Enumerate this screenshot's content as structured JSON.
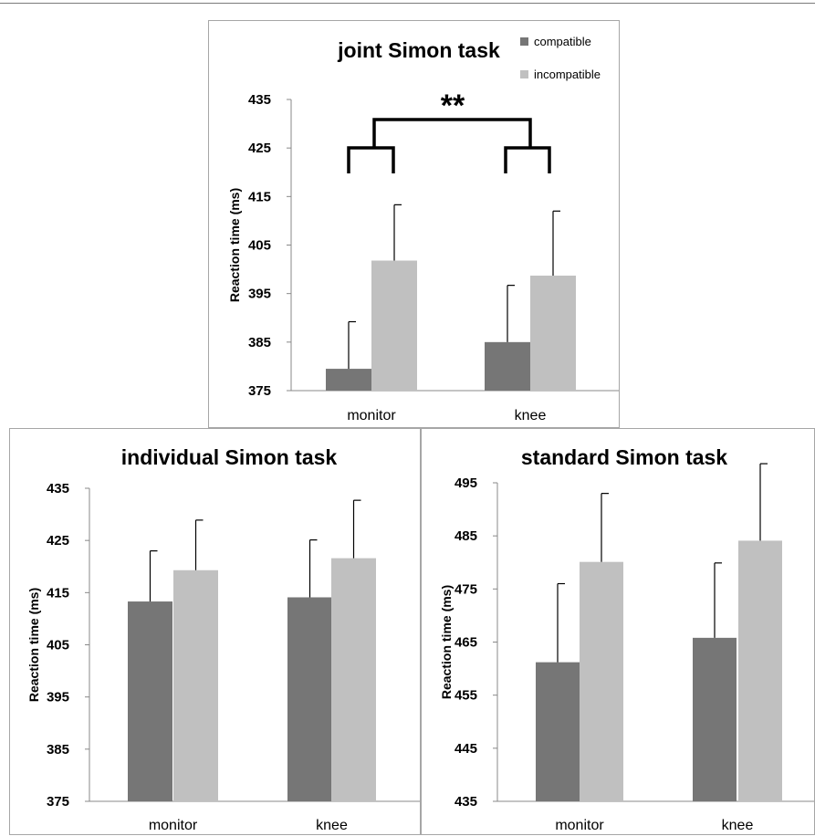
{
  "colors": {
    "compatible": "#767676",
    "incompatible": "#c0c0c0"
  },
  "chart_data": [
    {
      "type": "bar",
      "title": "joint Simon task",
      "categories": [
        "monitor",
        "knee"
      ],
      "ylabel": "Reaction time (ms)",
      "ylim": [
        375,
        435
      ],
      "yticks": [
        375,
        385,
        395,
        405,
        415,
        425,
        435
      ],
      "series": [
        {
          "name": "compatible",
          "values": [
            379.5,
            385
          ],
          "errors": [
            9.7,
            11.7
          ]
        },
        {
          "name": "incompatible",
          "values": [
            401.8,
            398.7
          ],
          "errors": [
            11.5,
            13.3
          ]
        }
      ],
      "legend": "top-right",
      "significance": "**"
    },
    {
      "type": "bar",
      "title": "individual Simon task",
      "categories": [
        "monitor",
        "knee"
      ],
      "ylabel": "Reaction time (ms)",
      "ylim": [
        375,
        435
      ],
      "yticks": [
        375,
        385,
        395,
        405,
        415,
        425,
        435
      ],
      "series": [
        {
          "values": [
            413.3,
            414.1
          ],
          "errors": [
            9.7,
            11
          ]
        },
        {
          "values": [
            419.3,
            421.6
          ],
          "errors": [
            9.6,
            11.1
          ]
        }
      ]
    },
    {
      "type": "bar",
      "title": "standard Simon task",
      "categories": [
        "monitor",
        "knee"
      ],
      "ylabel": "Reaction time (ms)",
      "ylim": [
        435,
        500
      ],
      "yticks": [
        435,
        445,
        455,
        465,
        475,
        485,
        495
      ],
      "series": [
        {
          "values": [
            461.2,
            465.8
          ],
          "errors": [
            14.8,
            14.1
          ]
        },
        {
          "values": [
            480.1,
            484.1
          ],
          "errors": [
            12.9,
            14.5
          ]
        }
      ]
    }
  ]
}
